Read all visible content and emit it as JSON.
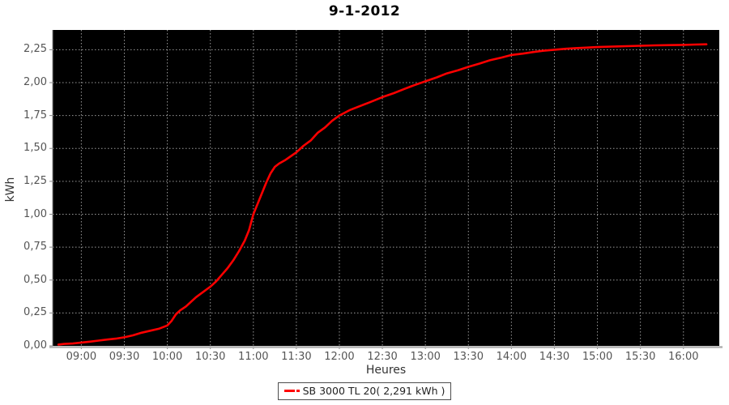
{
  "chart": {
    "title": "9-1-2012",
    "background": "#ffffff",
    "plot_background": "#000000",
    "grid_color": "#9a9a9a",
    "series_color": "#ff0000",
    "tick_color": "#888888",
    "axis_line_color": "#b0b0b0",
    "tick_label_color": "#555555",
    "axis_title_color": "#333333"
  },
  "legend": {
    "label": "SB 3000 TL 20( 2,291 kWh )",
    "swatch_color": "#ff0000"
  },
  "chart_data": {
    "type": "line",
    "title": "9-1-2012",
    "xlabel": "Heures",
    "ylabel": "kWh",
    "grid": true,
    "legend_position": "bottom",
    "x_unit": "minutes-of-day",
    "x_range_minutes": [
      520,
      985
    ],
    "ylim": [
      0,
      2.4
    ],
    "x_tick_minutes": [
      540,
      570,
      600,
      630,
      660,
      690,
      720,
      750,
      780,
      810,
      840,
      870,
      900,
      930,
      960
    ],
    "x_tick_labels": [
      "09:00",
      "09:30",
      "10:00",
      "10:30",
      "11:00",
      "11:30",
      "12:00",
      "12:30",
      "13:00",
      "13:30",
      "14:00",
      "14:30",
      "15:00",
      "15:30",
      "16:00"
    ],
    "y_tick_values": [
      0,
      0.25,
      0.5,
      0.75,
      1.0,
      1.25,
      1.5,
      1.75,
      2.0,
      2.25
    ],
    "y_tick_labels": [
      "0,00",
      "0,25",
      "0,50",
      "0,75",
      "1,00",
      "1,25",
      "1,50",
      "1,75",
      "2,00",
      "2,25"
    ],
    "series": [
      {
        "name": "SB 3000 TL 20( 2,291 kWh )",
        "color": "#ff0000",
        "total_kwh_label": "2,291 kWh",
        "points": [
          [
            524,
            0.01
          ],
          [
            528,
            0.015
          ],
          [
            534,
            0.018
          ],
          [
            540,
            0.025
          ],
          [
            546,
            0.032
          ],
          [
            552,
            0.04
          ],
          [
            558,
            0.048
          ],
          [
            564,
            0.055
          ],
          [
            570,
            0.065
          ],
          [
            576,
            0.08
          ],
          [
            582,
            0.1
          ],
          [
            588,
            0.115
          ],
          [
            594,
            0.13
          ],
          [
            600,
            0.155
          ],
          [
            603,
            0.19
          ],
          [
            606,
            0.24
          ],
          [
            609,
            0.27
          ],
          [
            611,
            0.285
          ],
          [
            613,
            0.3
          ],
          [
            616,
            0.33
          ],
          [
            620,
            0.37
          ],
          [
            625,
            0.41
          ],
          [
            630,
            0.45
          ],
          [
            634,
            0.49
          ],
          [
            638,
            0.54
          ],
          [
            642,
            0.59
          ],
          [
            646,
            0.65
          ],
          [
            650,
            0.72
          ],
          [
            654,
            0.8
          ],
          [
            657,
            0.88
          ],
          [
            660,
            1.0
          ],
          [
            663,
            1.08
          ],
          [
            666,
            1.16
          ],
          [
            669,
            1.24
          ],
          [
            672,
            1.31
          ],
          [
            675,
            1.36
          ],
          [
            678,
            1.385
          ],
          [
            682,
            1.41
          ],
          [
            686,
            1.44
          ],
          [
            690,
            1.47
          ],
          [
            695,
            1.52
          ],
          [
            700,
            1.56
          ],
          [
            705,
            1.62
          ],
          [
            710,
            1.66
          ],
          [
            715,
            1.71
          ],
          [
            720,
            1.75
          ],
          [
            727,
            1.79
          ],
          [
            734,
            1.82
          ],
          [
            741,
            1.85
          ],
          [
            750,
            1.89
          ],
          [
            758,
            1.92
          ],
          [
            765,
            1.95
          ],
          [
            772,
            1.98
          ],
          [
            780,
            2.01
          ],
          [
            788,
            2.04
          ],
          [
            795,
            2.07
          ],
          [
            803,
            2.095
          ],
          [
            810,
            2.12
          ],
          [
            818,
            2.145
          ],
          [
            825,
            2.17
          ],
          [
            833,
            2.19
          ],
          [
            840,
            2.21
          ],
          [
            848,
            2.22
          ],
          [
            855,
            2.232
          ],
          [
            862,
            2.242
          ],
          [
            870,
            2.25
          ],
          [
            878,
            2.257
          ],
          [
            885,
            2.262
          ],
          [
            892,
            2.266
          ],
          [
            900,
            2.27
          ],
          [
            910,
            2.274
          ],
          [
            920,
            2.277
          ],
          [
            930,
            2.28
          ],
          [
            940,
            2.283
          ],
          [
            950,
            2.285
          ],
          [
            960,
            2.287
          ],
          [
            968,
            2.289
          ],
          [
            976,
            2.291
          ]
        ]
      }
    ]
  }
}
